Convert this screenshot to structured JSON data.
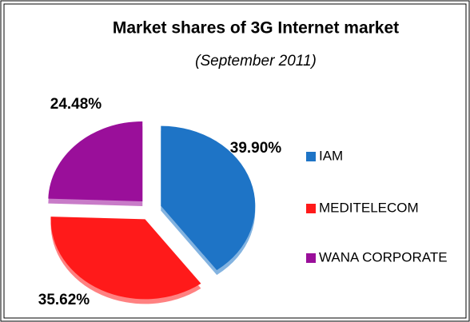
{
  "chart_data": {
    "type": "pie",
    "title": "Market shares of 3G Internet market",
    "subtitle": "(September 2011)",
    "categories": [
      "IAM",
      "MEDITELECOM",
      "WANA CORPORATE"
    ],
    "values": [
      39.9,
      35.62,
      24.48
    ],
    "value_labels": [
      "39.90%",
      "35.62%",
      "24.48%"
    ],
    "colors": [
      "#1e74c6",
      "#ff1a1a",
      "#9a0f9a"
    ],
    "legend": "right"
  }
}
